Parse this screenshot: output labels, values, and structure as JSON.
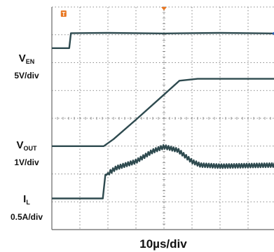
{
  "chart_data": {
    "type": "line",
    "title": "",
    "timebase": "10µs/div",
    "x_divisions": 8,
    "y_divisions": 8,
    "grid": true,
    "xlim": [
      0,
      8
    ],
    "ylim": [
      0,
      8
    ],
    "trigger_marker": "T",
    "series": [
      {
        "id": "ven",
        "label_main": "V",
        "label_sub": "EN",
        "scale": "5V/div",
        "color": "#2e4a4f",
        "ref_marker": "1",
        "ref_color": "#e87722",
        "points": [
          [
            0,
            6.52
          ],
          [
            0.62,
            6.52
          ],
          [
            0.68,
            7.06
          ],
          [
            2.0,
            7.07
          ],
          [
            4.0,
            7.05
          ],
          [
            6.0,
            7.07
          ],
          [
            8.0,
            7.05
          ]
        ]
      },
      {
        "id": "vout",
        "label_main": "V",
        "label_sub": "OUT",
        "scale": "1V/div",
        "color": "#2e4a4f",
        "points": [
          [
            0,
            3.0
          ],
          [
            1.85,
            3.0
          ],
          [
            2.2,
            3.25
          ],
          [
            3.0,
            3.95
          ],
          [
            4.0,
            4.85
          ],
          [
            4.55,
            5.35
          ],
          [
            5.2,
            5.42
          ],
          [
            6.5,
            5.42
          ],
          [
            8.0,
            5.42
          ]
        ]
      },
      {
        "id": "il",
        "label_main": "I",
        "label_sub": "L",
        "scale": "0.5A/div",
        "color": "#2e4a4f",
        "ripple": 0.14,
        "points": [
          [
            0,
            1.12
          ],
          [
            1.82,
            1.12
          ],
          [
            1.9,
            1.95
          ],
          [
            2.3,
            2.22
          ],
          [
            3.0,
            2.45
          ],
          [
            3.6,
            2.82
          ],
          [
            4.0,
            2.98
          ],
          [
            4.5,
            2.85
          ],
          [
            5.0,
            2.45
          ],
          [
            5.3,
            2.32
          ],
          [
            6.0,
            2.28
          ],
          [
            8.0,
            2.32
          ]
        ]
      }
    ]
  }
}
